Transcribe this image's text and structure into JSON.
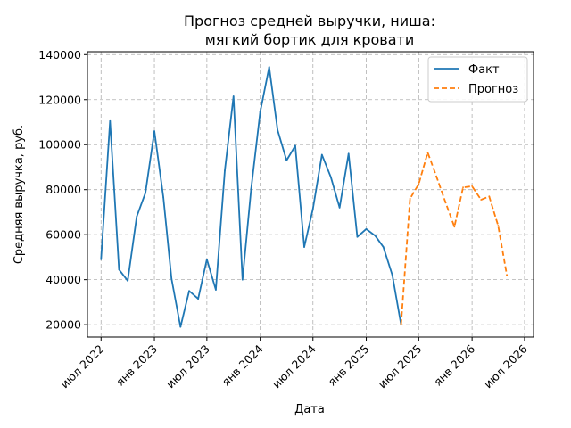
{
  "chart_data": {
    "type": "line",
    "title": [
      "Прогноз средней выручки, ниша:",
      "мягкий бортик для кровати"
    ],
    "xlabel": "Дата",
    "ylabel": "Средняя выручка, руб.",
    "ylim": [
      20000,
      140000
    ],
    "yticks": [
      20000,
      40000,
      60000,
      80000,
      100000,
      120000,
      140000
    ],
    "x_date_range": [
      "2022-05-15",
      "2026-08-01"
    ],
    "xticks": [
      {
        "date": "2022-07-01",
        "label": "июл 2022"
      },
      {
        "date": "2023-01-01",
        "label": "янв 2023"
      },
      {
        "date": "2023-07-01",
        "label": "июл 2023"
      },
      {
        "date": "2024-01-01",
        "label": "янв 2024"
      },
      {
        "date": "2024-07-01",
        "label": "июл 2024"
      },
      {
        "date": "2025-01-01",
        "label": "янв 2025"
      },
      {
        "date": "2025-07-01",
        "label": "июл 2025"
      },
      {
        "date": "2026-01-01",
        "label": "янв 2026"
      },
      {
        "date": "2026-07-01",
        "label": "июл 2026"
      }
    ],
    "grid": true,
    "legend_position": "top-right",
    "series": [
      {
        "name": "Факт",
        "color": "#1f77b4",
        "dash": "solid",
        "points": [
          [
            "2022-07-01",
            49000
          ],
          [
            "2022-08-01",
            110500
          ],
          [
            "2022-09-01",
            44500
          ],
          [
            "2022-10-01",
            39500
          ],
          [
            "2022-11-01",
            68000
          ],
          [
            "2022-12-01",
            78500
          ],
          [
            "2023-01-01",
            106000
          ],
          [
            "2023-02-01",
            76500
          ],
          [
            "2023-03-01",
            40500
          ],
          [
            "2023-04-01",
            19000
          ],
          [
            "2023-05-01",
            35000
          ],
          [
            "2023-06-01",
            31500
          ],
          [
            "2023-07-01",
            49000
          ],
          [
            "2023-08-01",
            35500
          ],
          [
            "2023-09-01",
            88500
          ],
          [
            "2023-10-01",
            121500
          ],
          [
            "2023-11-01",
            40000
          ],
          [
            "2023-12-01",
            80500
          ],
          [
            "2024-01-01",
            114500
          ],
          [
            "2024-02-01",
            134500
          ],
          [
            "2024-03-01",
            106500
          ],
          [
            "2024-04-01",
            93000
          ],
          [
            "2024-05-01",
            99500
          ],
          [
            "2024-06-01",
            54500
          ],
          [
            "2024-07-01",
            71500
          ],
          [
            "2024-08-01",
            95500
          ],
          [
            "2024-09-01",
            85500
          ],
          [
            "2024-10-01",
            72000
          ],
          [
            "2024-11-01",
            96000
          ],
          [
            "2024-12-01",
            59000
          ],
          [
            "2025-01-01",
            62500
          ],
          [
            "2025-02-01",
            59500
          ],
          [
            "2025-03-01",
            54500
          ],
          [
            "2025-04-01",
            42000
          ],
          [
            "2025-05-01",
            20000
          ]
        ]
      },
      {
        "name": "Прогноз",
        "color": "#ff7f0e",
        "dash": "dashed",
        "points": [
          [
            "2025-05-01",
            20000
          ],
          [
            "2025-06-01",
            76000
          ],
          [
            "2025-07-01",
            82500
          ],
          [
            "2025-08-01",
            96500
          ],
          [
            "2025-09-01",
            85500
          ],
          [
            "2025-10-01",
            74500
          ],
          [
            "2025-11-01",
            63500
          ],
          [
            "2025-12-01",
            81000
          ],
          [
            "2026-01-01",
            81500
          ],
          [
            "2026-02-01",
            75500
          ],
          [
            "2026-03-01",
            77000
          ],
          [
            "2026-04-01",
            64000
          ],
          [
            "2026-05-01",
            42000
          ]
        ]
      }
    ]
  }
}
